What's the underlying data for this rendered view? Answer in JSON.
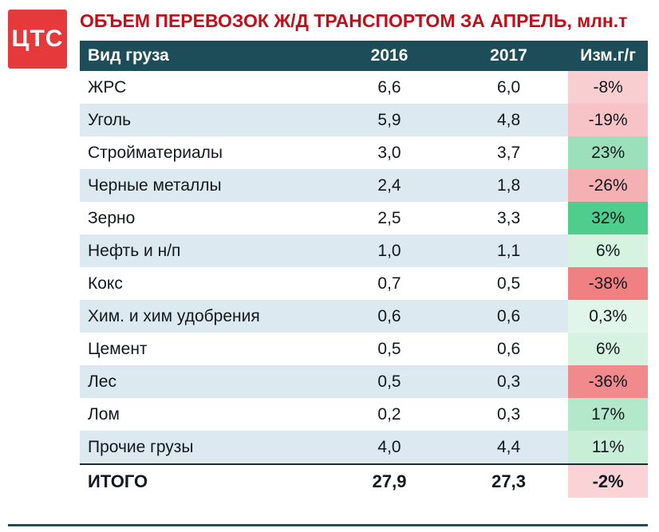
{
  "logo": {
    "text": "ЦТС"
  },
  "title": "ОБЪЕМ ПЕРЕВОЗОК Ж/Д ТРАНСПОРТОМ ЗА АПРЕЛЬ, млн.т",
  "colors": {
    "title": "#c20e1a",
    "logo_bg": "#e6393c",
    "header_bg": "#1e4d5a",
    "stripe": "#dce9f1",
    "border_dark": "#1e2a32"
  },
  "table": {
    "columns": [
      "Вид груза",
      "2016",
      "2017",
      "Изм.г/г"
    ],
    "rows": [
      {
        "name": "ЖРС",
        "y2016": "6,6",
        "y2017": "6,0",
        "change": "-8%",
        "change_bg": "#f9ced1"
      },
      {
        "name": "Уголь",
        "y2016": "5,9",
        "y2017": "4,8",
        "change": "-19%",
        "change_bg": "#f7c3c6"
      },
      {
        "name": "Стройматериалы",
        "y2016": "3,0",
        "y2017": "3,7",
        "change": "23%",
        "change_bg": "#9be0ba"
      },
      {
        "name": "Черные металлы",
        "y2016": "2,4",
        "y2017": "1,8",
        "change": "-26%",
        "change_bg": "#f5b0b3"
      },
      {
        "name": "Зерно",
        "y2016": "2,5",
        "y2017": "3,3",
        "change": "32%",
        "change_bg": "#4fcd8d"
      },
      {
        "name": "Нефть и н/п",
        "y2016": "1,0",
        "y2017": "1,1",
        "change": "6%",
        "change_bg": "#d6f2e1"
      },
      {
        "name": "Кокс",
        "y2016": "0,7",
        "y2017": "0,5",
        "change": "-38%",
        "change_bg": "#f08082"
      },
      {
        "name": "Хим. и хим удобрения",
        "y2016": "0,6",
        "y2017": "0,6",
        "change": "0,3%",
        "change_bg": "#e1f5ea"
      },
      {
        "name": "Цемент",
        "y2016": "0,5",
        "y2017": "0,6",
        "change": "6%",
        "change_bg": "#d6f2e1"
      },
      {
        "name": "Лес",
        "y2016": "0,5",
        "y2017": "0,3",
        "change": "-36%",
        "change_bg": "#f18a8c"
      },
      {
        "name": "Лом",
        "y2016": "0,2",
        "y2017": "0,3",
        "change": "17%",
        "change_bg": "#b4e8ca"
      },
      {
        "name": "Прочие грузы",
        "y2016": "4,0",
        "y2017": "4,4",
        "change": "11%",
        "change_bg": "#c8eed8"
      }
    ],
    "total": {
      "name": "ИТОГО",
      "y2016": "27,9",
      "y2017": "27,3",
      "change": "-2%",
      "change_bg": "#f9d3d6"
    }
  },
  "chart_data": {
    "type": "table",
    "title": "ОБЪЕМ ПЕРЕВОЗОК Ж/Д ТРАНСПОРТОМ ЗА АПРЕЛЬ, млн.т",
    "unit": "млн.т",
    "columns": [
      "Вид груза",
      "2016",
      "2017",
      "Изм.г/г"
    ],
    "categories": [
      "ЖРС",
      "Уголь",
      "Стройматериалы",
      "Черные металлы",
      "Зерно",
      "Нефть и н/п",
      "Кокс",
      "Хим. и хим удобрения",
      "Цемент",
      "Лес",
      "Лом",
      "Прочие грузы"
    ],
    "series": [
      {
        "name": "2016",
        "values": [
          6.6,
          5.9,
          3.0,
          2.4,
          2.5,
          1.0,
          0.7,
          0.6,
          0.5,
          0.5,
          0.2,
          4.0
        ]
      },
      {
        "name": "2017",
        "values": [
          6.0,
          4.8,
          3.7,
          1.8,
          3.3,
          1.1,
          0.5,
          0.6,
          0.6,
          0.3,
          0.3,
          4.4
        ]
      }
    ],
    "change_pct": [
      "-8%",
      "-19%",
      "23%",
      "-26%",
      "32%",
      "6%",
      "-38%",
      "0,3%",
      "6%",
      "-36%",
      "17%",
      "11%"
    ],
    "total": {
      "name": "ИТОГО",
      "v2016": 27.9,
      "v2017": 27.3,
      "change": "-2%"
    }
  }
}
